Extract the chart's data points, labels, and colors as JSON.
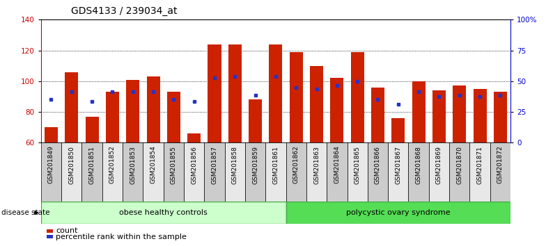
{
  "title": "GDS4133 / 239034_at",
  "samples": [
    "GSM201849",
    "GSM201850",
    "GSM201851",
    "GSM201852",
    "GSM201853",
    "GSM201854",
    "GSM201855",
    "GSM201856",
    "GSM201857",
    "GSM201858",
    "GSM201859",
    "GSM201861",
    "GSM201862",
    "GSM201863",
    "GSM201864",
    "GSM201865",
    "GSM201866",
    "GSM201867",
    "GSM201868",
    "GSM201869",
    "GSM201870",
    "GSM201871",
    "GSM201872"
  ],
  "red_values": [
    70,
    106,
    77,
    93,
    101,
    103,
    93,
    66,
    124,
    124,
    88,
    124,
    119,
    110,
    102,
    119,
    96,
    76,
    100,
    94,
    97,
    95,
    93
  ],
  "blue_values": [
    88,
    93,
    87,
    93,
    93,
    93,
    88,
    87,
    102,
    103,
    91,
    103,
    96,
    95,
    97,
    100,
    88,
    85,
    93,
    90,
    91,
    90,
    91
  ],
  "obese_count": 12,
  "pcos_count": 11,
  "group1_label": "obese healthy controls",
  "group2_label": "polycystic ovary syndrome",
  "disease_state_label": "disease state",
  "ylim_left": [
    60,
    140
  ],
  "ylim_right": [
    0,
    100
  ],
  "yticks_left": [
    60,
    80,
    100,
    120,
    140
  ],
  "yticks_right": [
    0,
    25,
    50,
    75,
    100
  ],
  "bar_color": "#cc2200",
  "dot_color": "#2233cc",
  "grid_color": "#000000",
  "axis_label_color_left": "#cc0000",
  "axis_label_color_right": "#0000cc",
  "legend_count_label": "count",
  "legend_pct_label": "percentile rank within the sample",
  "title_fontsize": 10,
  "tick_fontsize": 7.5,
  "xtick_fontsize": 6.5,
  "label_fontsize": 8,
  "obese_fill": "#ccffcc",
  "pcos_fill": "#55dd55",
  "group_edge": "#44aa44",
  "xtick_bg_odd": "#cccccc",
  "xtick_bg_even": "#e8e8e8"
}
